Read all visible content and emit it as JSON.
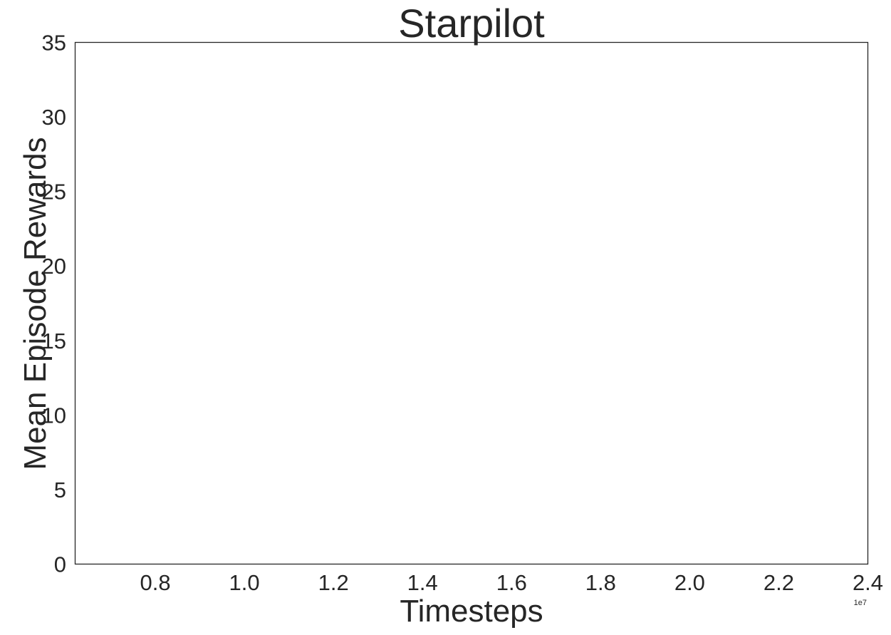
{
  "chart_data": {
    "type": "line",
    "title": "Starpilot",
    "xlabel": "Timesteps",
    "ylabel": "Mean Episode Rewards",
    "x_scale_label": "1e7",
    "xlim": [
      0.62,
      2.4
    ],
    "ylim": [
      0,
      35
    ],
    "x_ticks": [
      0.8,
      1.0,
      1.2,
      1.4,
      1.6,
      1.8,
      2.0,
      2.2,
      2.4
    ],
    "x_tick_labels": [
      "0.8",
      "1.0",
      "1.2",
      "1.4",
      "1.6",
      "1.8",
      "2.0",
      "2.2",
      "2.4"
    ],
    "y_ticks": [
      0,
      5,
      10,
      15,
      20,
      25,
      30,
      35
    ],
    "y_tick_labels": [
      "0",
      "5",
      "10",
      "15",
      "20",
      "25",
      "30",
      "35"
    ],
    "grid": false,
    "series": []
  },
  "colors": {
    "axis": "#262626",
    "text": "#262626",
    "background": "#ffffff"
  }
}
